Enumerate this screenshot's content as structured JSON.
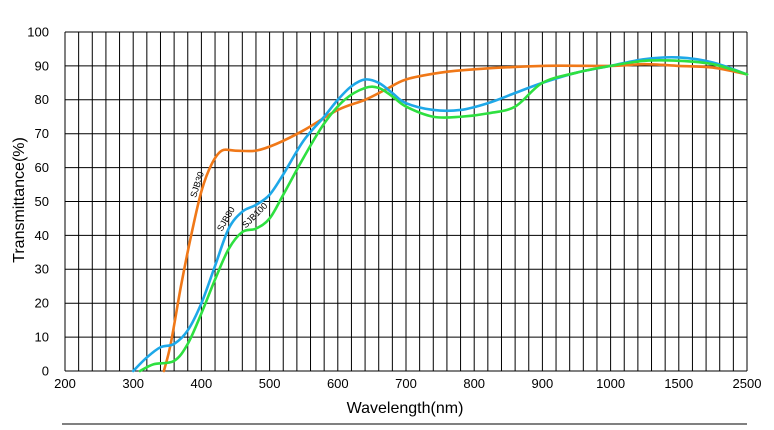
{
  "chart_data": {
    "type": "line",
    "title": "",
    "xlabel": "Wavelength(nm)",
    "ylabel": "Transmittance(%)",
    "x_scale": "piecewise-linear: equal spacing per labeled tick",
    "x_ticks": [
      200,
      300,
      400,
      500,
      600,
      700,
      800,
      900,
      1000,
      1500,
      2500
    ],
    "x_tick_labels": [
      "200",
      "300",
      "400",
      "500",
      "600",
      "700",
      "800",
      "900",
      "1000",
      "1500",
      "2500"
    ],
    "y_ticks": [
      0,
      10,
      20,
      30,
      40,
      50,
      60,
      70,
      80,
      90,
      100
    ],
    "y_tick_labels": [
      "0",
      "10",
      "20",
      "30",
      "40",
      "50",
      "60",
      "70",
      "80",
      "90",
      "100"
    ],
    "xlim": [
      200,
      2500
    ],
    "ylim": [
      0,
      100
    ],
    "grid": true,
    "legend": "inline labels on curves",
    "series": [
      {
        "name": "SJB30",
        "color": "#f07818",
        "x": [
          345,
          355,
          370,
          385,
          400,
          415,
          430,
          450,
          480,
          510,
          550,
          600,
          640,
          670,
          700,
          750,
          800,
          900,
          1000,
          1250,
          1500,
          2000,
          2500
        ],
        "y": [
          0,
          8,
          25,
          40,
          53,
          61,
          65,
          65,
          65,
          67,
          71,
          77,
          80,
          83,
          86,
          88,
          89,
          90,
          90,
          90.5,
          90,
          89.5,
          87.5
        ]
      },
      {
        "name": "SJB80",
        "color": "#1ea8e8",
        "x": [
          300,
          320,
          340,
          360,
          380,
          400,
          420,
          440,
          460,
          480,
          500,
          520,
          550,
          580,
          600,
          620,
          640,
          660,
          680,
          700,
          740,
          780,
          820,
          860,
          900,
          950,
          1000,
          1250,
          1500,
          2000,
          2500
        ],
        "y": [
          0,
          4,
          7,
          8,
          12,
          20,
          31,
          42,
          47,
          49,
          52,
          58,
          68,
          75,
          80,
          84,
          86,
          85,
          82,
          79,
          77,
          77,
          79,
          82,
          85,
          88,
          90,
          92,
          92.5,
          91,
          87.5
        ]
      },
      {
        "name": "SJB100",
        "color": "#2ee040",
        "x": [
          310,
          330,
          360,
          380,
          400,
          420,
          440,
          460,
          480,
          500,
          520,
          550,
          580,
          610,
          640,
          660,
          680,
          700,
          740,
          780,
          820,
          860,
          900,
          950,
          1000,
          1250,
          1500,
          2000,
          2500
        ],
        "y": [
          0,
          2,
          3,
          8,
          17,
          27,
          36,
          41,
          42,
          45,
          52,
          63,
          73,
          80,
          83.5,
          83.5,
          81,
          78,
          75,
          75,
          76,
          78,
          85,
          88,
          90,
          91.5,
          91.5,
          90.5,
          87.5
        ]
      }
    ],
    "series_labels": [
      {
        "text": "SJB30",
        "series": 0,
        "anchor_x": 392,
        "anchor_y": 51,
        "rotate": -72
      },
      {
        "text": "SJB80",
        "series": 1,
        "anchor_x": 430,
        "anchor_y": 41,
        "rotate": -60
      },
      {
        "text": "SJB100",
        "series": 2,
        "anchor_x": 465,
        "anchor_y": 42,
        "rotate": -45
      }
    ]
  }
}
